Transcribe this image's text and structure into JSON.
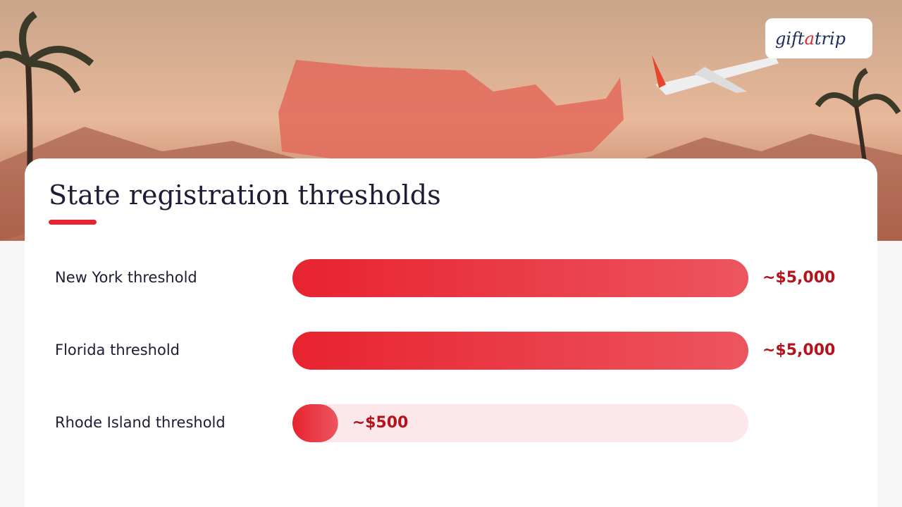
{
  "logo": {
    "parts": [
      "gift",
      "a",
      "trip"
    ]
  },
  "chart_data": {
    "type": "bar",
    "orientation": "horizontal",
    "title": "State registration thresholds",
    "categories": [
      "New York threshold",
      "Florida threshold",
      "Rhode Island threshold"
    ],
    "values": [
      5000,
      5000,
      500
    ],
    "value_labels": [
      "~$5,000",
      "~$5,000",
      "~$500"
    ],
    "xlim": [
      0,
      5000
    ],
    "color": "#e8232f",
    "track_color": "#fce8ea",
    "label_color": "#b5121b"
  }
}
